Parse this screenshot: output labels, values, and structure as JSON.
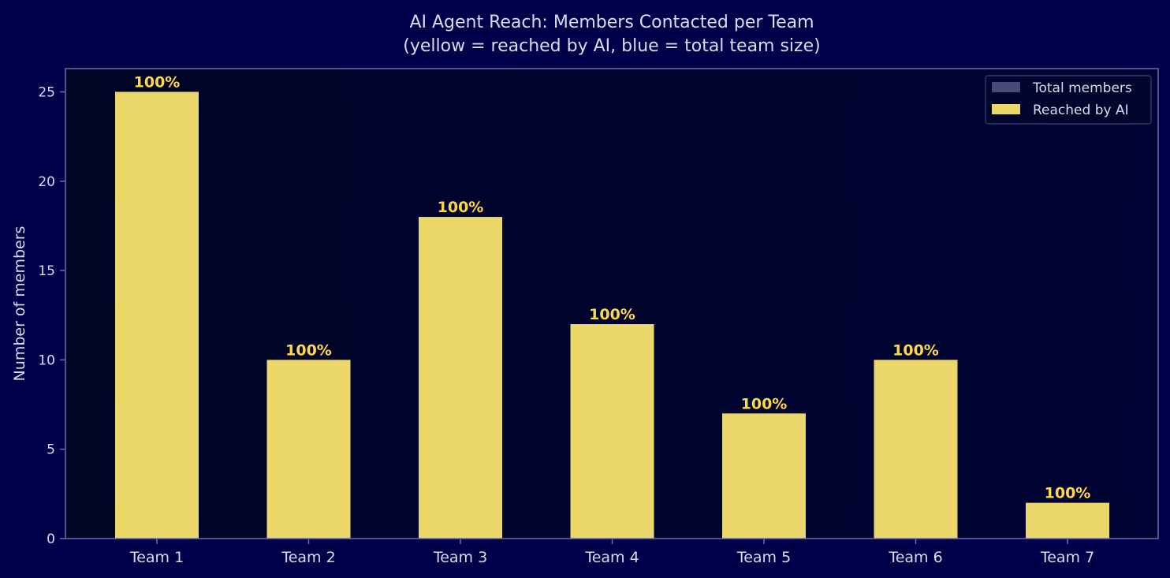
{
  "chart_data": {
    "type": "bar",
    "title_line1": "AI Agent Reach: Members Contacted per Team",
    "title_line2": "(yellow = reached by AI, blue = total team size)",
    "xlabel": "",
    "ylabel": "Number of members",
    "categories": [
      "Team 1",
      "Team 2",
      "Team 3",
      "Team 4",
      "Team 5",
      "Team 6",
      "Team 7"
    ],
    "series": [
      {
        "name": "Total members",
        "values": [
          25,
          10,
          18,
          12,
          7,
          10,
          2
        ],
        "color": "#4a4a7a"
      },
      {
        "name": "Reached by AI",
        "values": [
          25,
          10,
          18,
          12,
          7,
          10,
          2
        ],
        "color": "#ecd76a"
      }
    ],
    "data_labels": [
      "100%",
      "100%",
      "100%",
      "100%",
      "100%",
      "100%",
      "100%"
    ],
    "ylim": [
      0,
      26.3
    ],
    "yticks": [
      0,
      5,
      10,
      15,
      20,
      25
    ],
    "legend_position": "top-right",
    "grid": false,
    "colors": {
      "page_background": "#00004a",
      "plot_background": "#000530",
      "axis": "#6b6fa8",
      "text": "#d9dcef",
      "label_highlight": "#ffd84a"
    }
  }
}
